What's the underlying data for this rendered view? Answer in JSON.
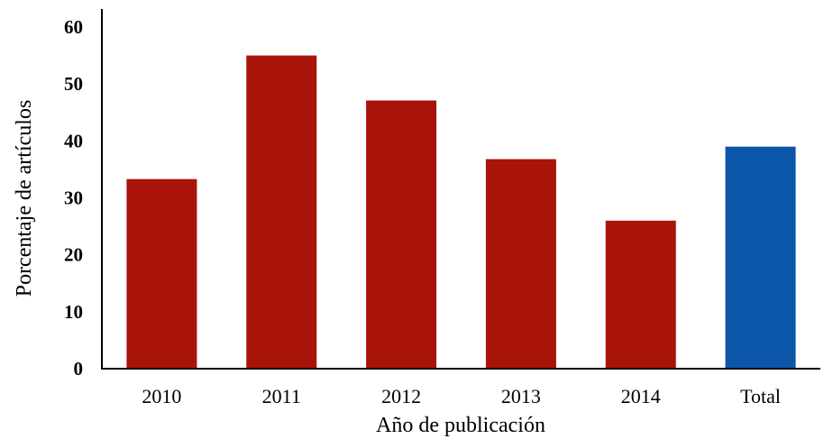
{
  "chart_data": {
    "type": "bar",
    "title": "",
    "xlabel": "Año de publicación",
    "ylabel": "Porcentaje de artículos",
    "categories": [
      "2010",
      "2011",
      "2012",
      "2013",
      "2014",
      "Total"
    ],
    "values": [
      33.3,
      55,
      47.1,
      36.8,
      26,
      39
    ],
    "bar_colors": [
      "#A8140A",
      "#A8140A",
      "#A8140A",
      "#A8140A",
      "#A8140A",
      "#0B56A8"
    ],
    "ylim": [
      0,
      60
    ],
    "yticks": [
      0,
      10,
      20,
      30,
      40,
      50,
      60
    ],
    "grid": false,
    "legend": "none"
  }
}
